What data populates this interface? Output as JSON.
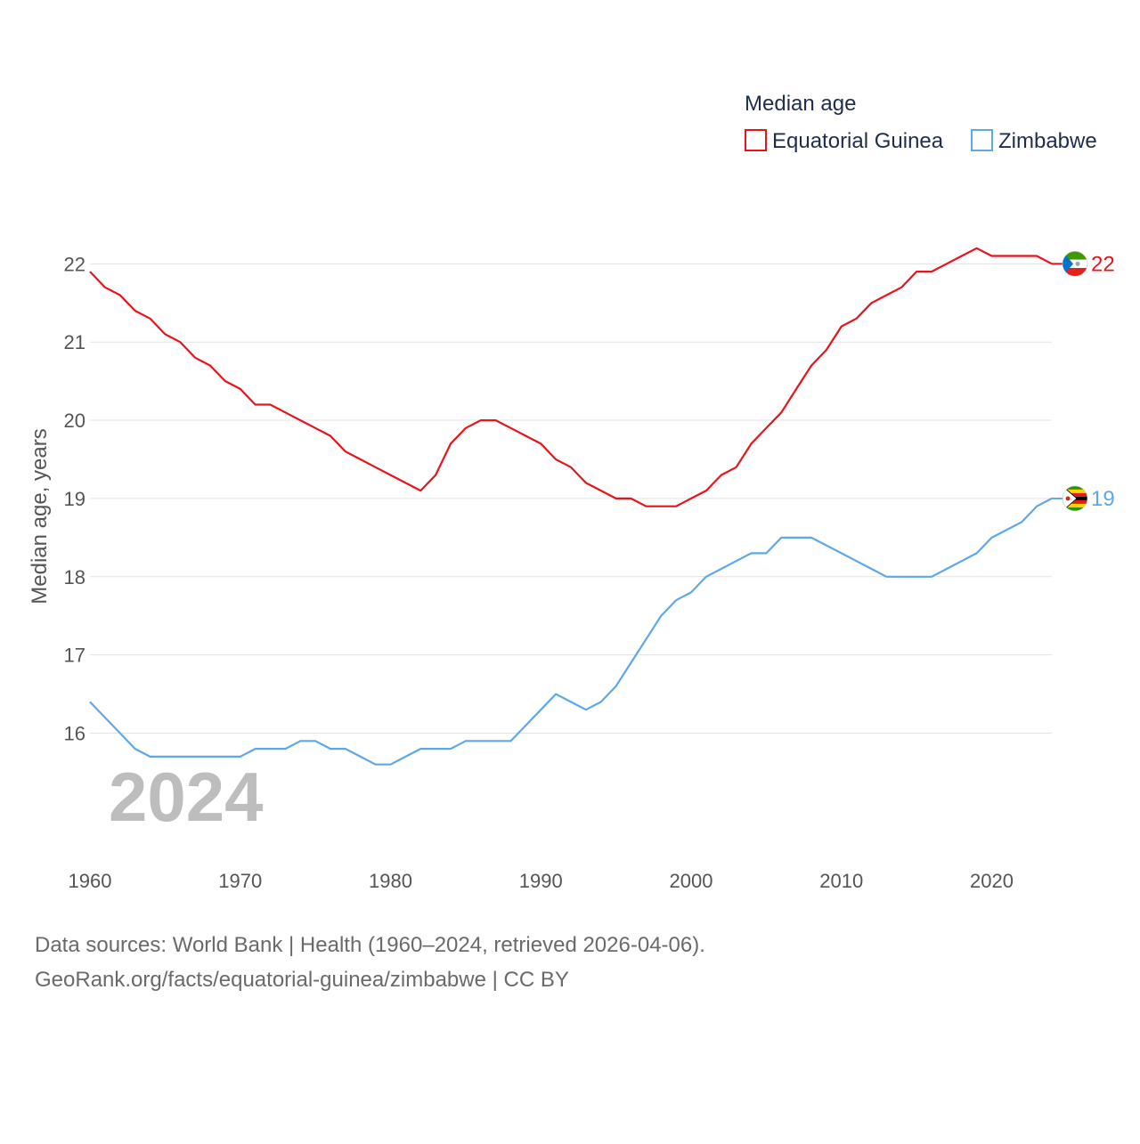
{
  "chart_data": {
    "type": "line",
    "ylabel": "Median age, years",
    "xlim": [
      1960,
      2024
    ],
    "ylim": [
      15.05,
      22.55
    ],
    "x_ticks": [
      1960,
      1970,
      1980,
      1990,
      2000,
      2010,
      2020
    ],
    "y_ticks": [
      16,
      17,
      18,
      19,
      20,
      21,
      22
    ],
    "grid": true,
    "year_watermark": "2024",
    "legend": {
      "title": "Median age",
      "placement": "top-right"
    },
    "series": [
      {
        "name": "Equatorial Guinea",
        "color": "#e8141c",
        "flag_icon": "equatorial-guinea-flag-icon",
        "end_label": "22",
        "x": [
          1960,
          1961,
          1962,
          1963,
          1964,
          1965,
          1966,
          1967,
          1968,
          1969,
          1970,
          1971,
          1972,
          1973,
          1974,
          1975,
          1976,
          1977,
          1978,
          1979,
          1980,
          1981,
          1982,
          1983,
          1984,
          1985,
          1986,
          1987,
          1988,
          1989,
          1990,
          1991,
          1992,
          1993,
          1994,
          1995,
          1996,
          1997,
          1998,
          1999,
          2000,
          2001,
          2002,
          2003,
          2004,
          2005,
          2006,
          2007,
          2008,
          2009,
          2010,
          2011,
          2012,
          2013,
          2014,
          2015,
          2016,
          2017,
          2018,
          2019,
          2020,
          2021,
          2022,
          2023,
          2024
        ],
        "values": [
          21.9,
          21.7,
          21.6,
          21.4,
          21.3,
          21.1,
          21.0,
          20.8,
          20.7,
          20.5,
          20.4,
          20.2,
          20.2,
          20.1,
          20.0,
          19.9,
          19.8,
          19.6,
          19.5,
          19.4,
          19.3,
          19.2,
          19.1,
          19.3,
          19.7,
          19.9,
          20.0,
          20.0,
          19.9,
          19.8,
          19.7,
          19.5,
          19.4,
          19.2,
          19.1,
          19.0,
          19.0,
          18.9,
          18.9,
          18.9,
          19.0,
          19.1,
          19.3,
          19.4,
          19.7,
          19.9,
          20.1,
          20.4,
          20.7,
          20.9,
          21.2,
          21.3,
          21.5,
          21.6,
          21.7,
          21.9,
          21.9,
          22.0,
          22.1,
          22.2,
          22.1,
          22.1,
          22.1,
          22.1,
          22.0
        ]
      },
      {
        "name": "Zimbabwe",
        "color": "#5ea8e8",
        "flag_icon": "zimbabwe-flag-icon",
        "end_label": "19",
        "x": [
          1960,
          1961,
          1962,
          1963,
          1964,
          1965,
          1966,
          1967,
          1968,
          1969,
          1970,
          1971,
          1972,
          1973,
          1974,
          1975,
          1976,
          1977,
          1978,
          1979,
          1980,
          1981,
          1982,
          1983,
          1984,
          1985,
          1986,
          1987,
          1988,
          1989,
          1990,
          1991,
          1992,
          1993,
          1994,
          1995,
          1996,
          1997,
          1998,
          1999,
          2000,
          2001,
          2002,
          2003,
          2004,
          2005,
          2006,
          2007,
          2008,
          2009,
          2010,
          2011,
          2012,
          2013,
          2014,
          2015,
          2016,
          2017,
          2018,
          2019,
          2020,
          2021,
          2022,
          2023,
          2024
        ],
        "values": [
          16.4,
          16.2,
          16.0,
          15.8,
          15.7,
          15.7,
          15.7,
          15.7,
          15.7,
          15.7,
          15.7,
          15.8,
          15.8,
          15.8,
          15.9,
          15.9,
          15.8,
          15.8,
          15.7,
          15.6,
          15.6,
          15.7,
          15.8,
          15.8,
          15.8,
          15.9,
          15.9,
          15.9,
          15.9,
          16.1,
          16.3,
          16.5,
          16.4,
          16.3,
          16.4,
          16.6,
          16.9,
          17.2,
          17.5,
          17.7,
          17.8,
          18.0,
          18.1,
          18.2,
          18.3,
          18.3,
          18.5,
          18.5,
          18.5,
          18.4,
          18.3,
          18.2,
          18.1,
          18.0,
          18.0,
          18.0,
          18.0,
          18.1,
          18.2,
          18.3,
          18.5,
          18.6,
          18.7,
          18.9,
          19.0
        ]
      }
    ]
  },
  "footer": {
    "source_line": "Data sources: World Bank | Health (1960–2024, retrieved 2026-04-06).",
    "url_line": "GeoRank.org/facts/equatorial-guinea/zimbabwe | CC BY"
  }
}
